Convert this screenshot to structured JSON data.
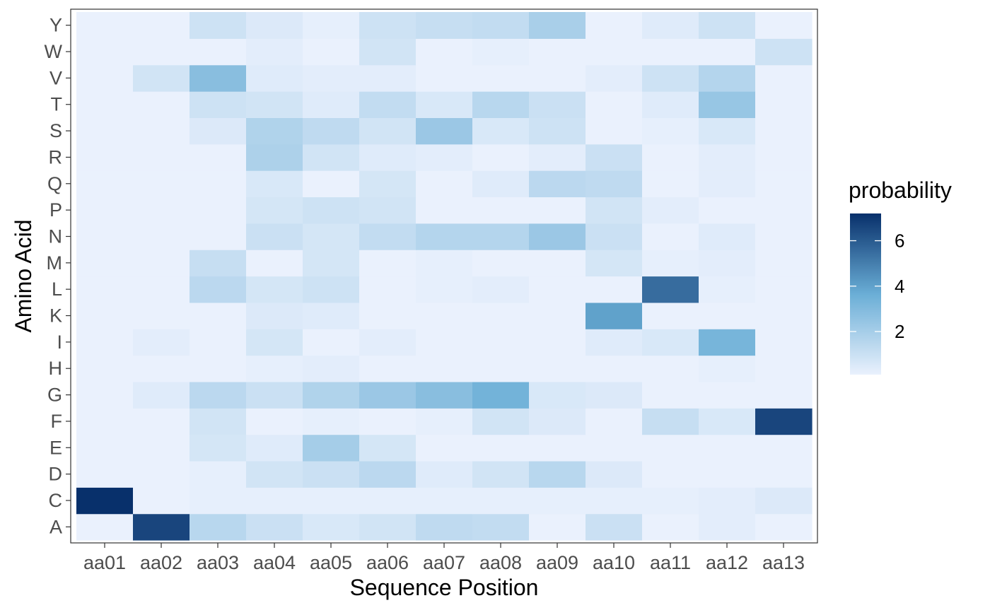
{
  "chart_data": {
    "type": "heatmap",
    "title": "",
    "xlabel": "Sequence Position",
    "ylabel": "Amino Acid",
    "x_categories": [
      "aa01",
      "aa02",
      "aa03",
      "aa04",
      "aa05",
      "aa06",
      "aa07",
      "aa08",
      "aa09",
      "aa10",
      "aa11",
      "aa12",
      "aa13"
    ],
    "y_categories": [
      "A",
      "C",
      "D",
      "E",
      "F",
      "G",
      "H",
      "I",
      "K",
      "L",
      "M",
      "N",
      "P",
      "Q",
      "R",
      "S",
      "T",
      "V",
      "W",
      "Y"
    ],
    "values": {
      "A": [
        0.0,
        6.6,
        1.5,
        1.0,
        0.6,
        0.8,
        1.3,
        1.2,
        0.1,
        1.0,
        0.1,
        0.3,
        0.1
      ],
      "C": [
        7.2,
        0.0,
        0.2,
        0.2,
        0.2,
        0.2,
        0.2,
        0.2,
        0.2,
        0.2,
        0.2,
        0.3,
        0.5
      ],
      "D": [
        0.1,
        0.1,
        0.2,
        0.8,
        1.0,
        1.4,
        0.4,
        0.8,
        1.5,
        0.5,
        0.1,
        0.1,
        0.1
      ],
      "E": [
        0.1,
        0.1,
        0.7,
        0.4,
        2.0,
        0.7,
        0.1,
        0.1,
        0.1,
        0.1,
        0.1,
        0.1,
        0.1
      ],
      "F": [
        0.1,
        0.1,
        0.8,
        0.1,
        0.2,
        0.1,
        0.2,
        0.8,
        0.5,
        0.1,
        1.1,
        0.6,
        6.6
      ],
      "G": [
        0.1,
        0.4,
        1.4,
        1.0,
        1.7,
        2.3,
        2.8,
        3.4,
        0.6,
        0.5,
        0.1,
        0.1,
        0.1
      ],
      "H": [
        0.1,
        0.1,
        0.1,
        0.2,
        0.3,
        0.1,
        0.1,
        0.1,
        0.1,
        0.1,
        0.1,
        0.2,
        0.1
      ],
      "I": [
        0.1,
        0.3,
        0.1,
        0.7,
        0.1,
        0.3,
        0.1,
        0.1,
        0.1,
        0.4,
        0.6,
        3.3,
        0.1
      ],
      "K": [
        0.1,
        0.1,
        0.1,
        0.5,
        0.4,
        0.1,
        0.1,
        0.1,
        0.1,
        4.0,
        0.1,
        0.1,
        0.1
      ],
      "L": [
        0.1,
        0.1,
        1.4,
        0.7,
        0.9,
        0.1,
        0.2,
        0.3,
        0.1,
        0.1,
        5.5,
        0.2,
        0.1
      ],
      "M": [
        0.1,
        0.1,
        1.1,
        0.1,
        0.7,
        0.1,
        0.2,
        0.1,
        0.1,
        0.7,
        0.2,
        0.3,
        0.1
      ],
      "N": [
        0.1,
        0.1,
        0.1,
        1.0,
        0.7,
        1.2,
        1.6,
        1.6,
        2.3,
        1.0,
        0.1,
        0.4,
        0.1
      ],
      "P": [
        0.1,
        0.1,
        0.1,
        0.7,
        0.9,
        0.8,
        0.1,
        0.1,
        0.1,
        0.8,
        0.3,
        0.1,
        0.1
      ],
      "Q": [
        0.1,
        0.1,
        0.1,
        0.6,
        0.1,
        0.7,
        0.1,
        0.4,
        1.4,
        1.3,
        0.1,
        0.3,
        0.1
      ],
      "R": [
        0.1,
        0.1,
        0.1,
        1.8,
        0.8,
        0.4,
        0.3,
        0.1,
        0.3,
        1.0,
        0.1,
        0.3,
        0.1
      ],
      "S": [
        0.1,
        0.1,
        0.5,
        1.7,
        1.3,
        0.8,
        2.3,
        0.6,
        0.9,
        0.1,
        0.2,
        0.6,
        0.1
      ],
      "T": [
        0.1,
        0.1,
        0.9,
        0.8,
        0.4,
        1.2,
        0.6,
        1.5,
        1.0,
        0.1,
        0.4,
        2.4,
        0.1
      ],
      "V": [
        0.1,
        0.8,
        2.8,
        0.4,
        0.3,
        0.3,
        0.1,
        0.1,
        0.1,
        0.3,
        0.9,
        1.6,
        0.1
      ],
      "W": [
        0.1,
        0.1,
        0.1,
        0.3,
        0.1,
        0.8,
        0.1,
        0.2,
        0.1,
        0.1,
        0.1,
        0.1,
        0.9
      ],
      "Y": [
        0.1,
        0.1,
        0.9,
        0.5,
        0.2,
        0.9,
        1.1,
        1.2,
        1.9,
        0.1,
        0.4,
        0.9,
        0.1
      ]
    },
    "legend": {
      "title": "probability",
      "position": "right",
      "ticks": [
        2,
        4,
        6
      ],
      "range": [
        0.1,
        7.2
      ],
      "colors": {
        "low": "#eaf1fd",
        "mid": "#6aaed6",
        "high": "#08306b"
      }
    },
    "grid": true,
    "theme": "bw"
  }
}
